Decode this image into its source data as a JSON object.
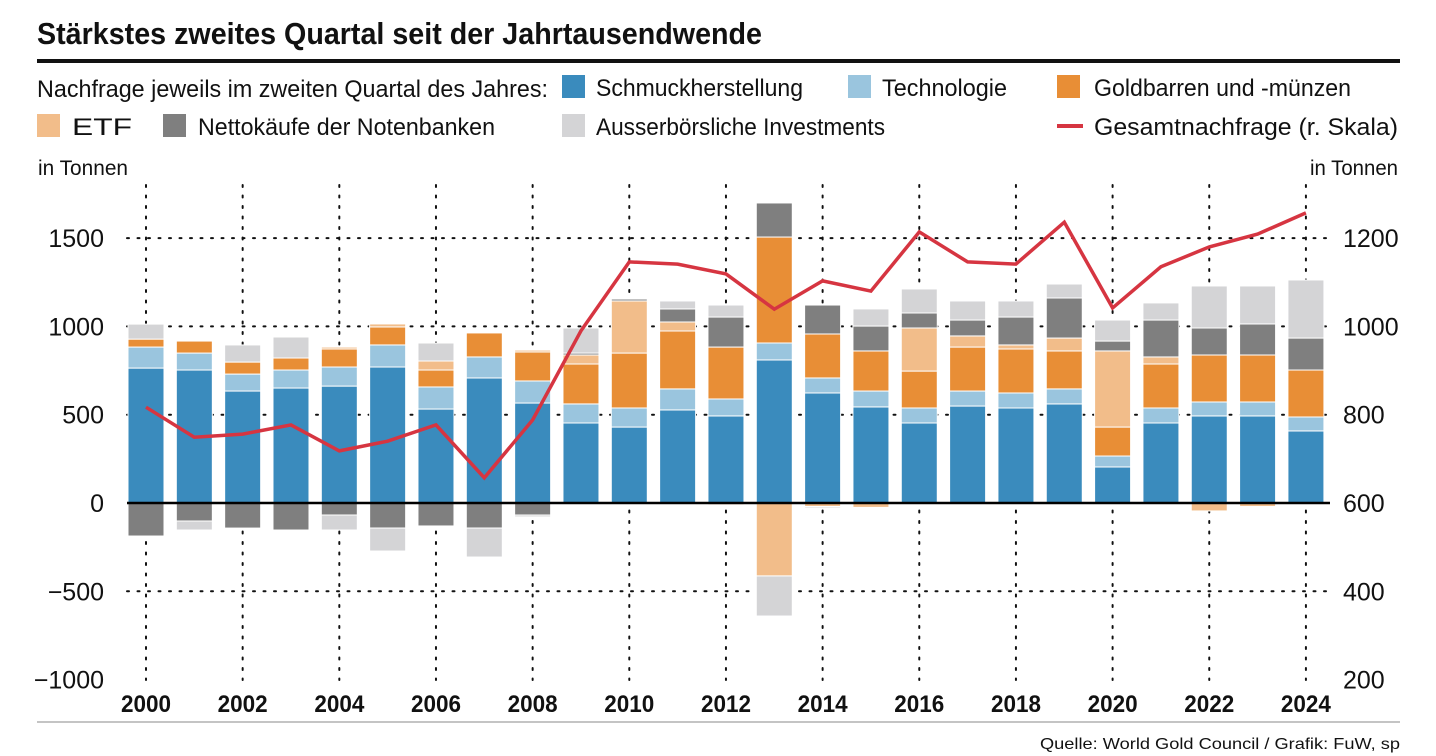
{
  "chart_data": {
    "type": "bar",
    "title": "Stärkstes zweites Quartal seit der Jahrtausendwende",
    "subtitle": "Nachfrage jeweils im zweiten Quartal des Jahres:",
    "ylabel_left": "in Tonnen",
    "ylabel_right": "in Tonnen",
    "source": "Quelle: World Gold Council / Grafik: FuW, sp",
    "stacked": true,
    "grid": true,
    "legend_placement": "top",
    "ylim_left": [
      -1000,
      1700
    ],
    "ylim_right": [
      200,
      1280
    ],
    "yticks_left": [
      -1000,
      -500,
      0,
      500,
      1000,
      1500
    ],
    "ytick_labels_left": [
      "−1000",
      "−500",
      "0",
      "500",
      "1000",
      "1500"
    ],
    "yticks_right": [
      200,
      400,
      600,
      800,
      1000,
      1200
    ],
    "ytick_labels_right": [
      "200",
      "400",
      "600",
      "800",
      "1000",
      "1200"
    ],
    "categories": [
      2000,
      2001,
      2002,
      2003,
      2004,
      2005,
      2006,
      2007,
      2008,
      2009,
      2010,
      2011,
      2012,
      2013,
      2014,
      2015,
      2016,
      2017,
      2018,
      2019,
      2020,
      2021,
      2022,
      2023,
      2024
    ],
    "xtick_labels": [
      "2000",
      "2002",
      "2004",
      "2006",
      "2008",
      "2010",
      "2012",
      "2014",
      "2016",
      "2018",
      "2020",
      "2022",
      "2024"
    ],
    "series": [
      {
        "name": "Schmuckherstellung",
        "color": "#3a8bbd",
        "values": [
          764,
          753,
          634,
          651,
          662,
          770,
          532,
          708,
          566,
          453,
          430,
          527,
          493,
          810,
          623,
          544,
          453,
          549,
          538,
          561,
          204,
          453,
          493,
          493,
          408
        ]
      },
      {
        "name": "Technologie",
        "color": "#9ac5de",
        "values": [
          119,
          96,
          96,
          102,
          108,
          125,
          125,
          119,
          125,
          108,
          108,
          119,
          96,
          96,
          85,
          90,
          85,
          85,
          85,
          85,
          62,
          85,
          79,
          79,
          79
        ]
      },
      {
        "name": "Goldbarren und -münzen",
        "color": "#e88e36",
        "values": [
          45,
          68,
          68,
          68,
          102,
          102,
          96,
          136,
          164,
          226,
          311,
          328,
          294,
          600,
          249,
          227,
          209,
          249,
          249,
          215,
          164,
          249,
          266,
          266,
          266
        ]
      },
      {
        "name": "ETF",
        "color": "#f2bd8a",
        "values": [
          0,
          0,
          0,
          0,
          11,
          17,
          51,
          0,
          11,
          51,
          295,
          51,
          -10,
          -413,
          -20,
          -25,
          244,
          63,
          23,
          73,
          431,
          40,
          -45,
          -20,
          -5
        ]
      },
      {
        "name": "Nettokäufe der Notenbanken",
        "color": "#7f7f7f",
        "values": [
          -187,
          -102,
          -142,
          -153,
          -68,
          -142,
          -130,
          -142,
          -68,
          11,
          11,
          74,
          170,
          193,
          164,
          141,
          85,
          90,
          158,
          227,
          56,
          209,
          153,
          176,
          181
        ]
      },
      {
        "name": "Ausserbörsliche Investments",
        "color": "#d4d4d6",
        "values": [
          85,
          -51,
          97,
          119,
          -85,
          -130,
          102,
          -164,
          -11,
          142,
          -5,
          45,
          68,
          -227,
          -8,
          97,
          136,
          108,
          91,
          79,
          119,
          97,
          238,
          215,
          329
        ]
      }
    ],
    "line_series": {
      "name": "Gesamtnachfrage (r. Skala)",
      "color": "#d63541",
      "axis": "right",
      "values": [
        817,
        749,
        756,
        777,
        718,
        740,
        777,
        657,
        788,
        990,
        1146,
        1141,
        1119,
        1039,
        1103,
        1080,
        1214,
        1146,
        1141,
        1236,
        1042,
        1135,
        1180,
        1209,
        1257
      ]
    }
  }
}
